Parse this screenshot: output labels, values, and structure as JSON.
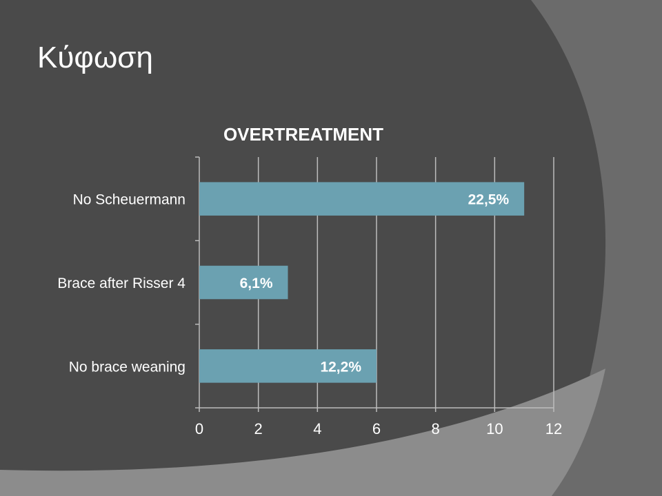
{
  "slide": {
    "title": "Κύφωση"
  },
  "colors": {
    "background": "#4a4a4a",
    "shape_light": "#8c8c8c",
    "shape_mid": "#6b6b6b",
    "bar": "#6ba1b1",
    "text": "#ffffff",
    "grid": "#bdbdbd"
  },
  "chart_data": {
    "type": "bar",
    "orientation": "horizontal",
    "title": "OVERTREATMENT",
    "categories": [
      "No Scheuermann",
      "Brace after Risser 4",
      "No brace weaning"
    ],
    "values": [
      11,
      3,
      6
    ],
    "data_labels": [
      "22,5%",
      "6,1%",
      "12,2%"
    ],
    "xlim": [
      0,
      12
    ],
    "x_ticks": [
      0,
      2,
      4,
      6,
      8,
      10,
      12
    ],
    "grid": true,
    "legend": "none"
  }
}
